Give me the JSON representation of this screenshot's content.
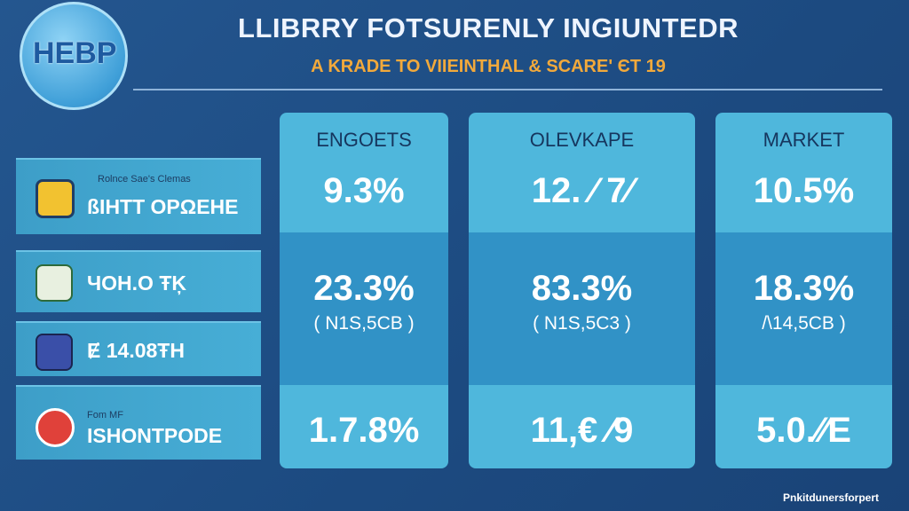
{
  "header": {
    "logo": "HEBP",
    "title": "LLIBRRY FOTSURENLY INGIUNTEDR",
    "subtitle": "A KRADE TO VIIEINTHAL & SCARE' ЄT 19"
  },
  "rows": [
    {
      "caption": "Rolnce Sae's Clemas",
      "label": "ßIHTT OPΩEHE"
    },
    {
      "label": "ЧOH.O ŦĶ"
    },
    {
      "label": "Ɇ 14.08ŦH"
    },
    {
      "caption": "Fom MF",
      "label": "ISHONTPODE"
    }
  ],
  "columns": [
    {
      "header": "ENGOETS",
      "top": "9.3%",
      "middle": "23.3%",
      "note": "( N1S,5CB )",
      "bottom": "1.7.8%"
    },
    {
      "header": "OLEVKAPE",
      "top": "12. ⁄ 7⁄",
      "middle": "83.3%",
      "note": "( N1S,5C3 )",
      "bottom": "11,€ ⁄9"
    },
    {
      "header": "MARKET",
      "top": "10.5%",
      "middle": "18.3%",
      "note": "/\\14,5CB )",
      "bottom": "5.0.⁄⁄E"
    }
  ],
  "footer": "Pnkitdunersforpert"
}
